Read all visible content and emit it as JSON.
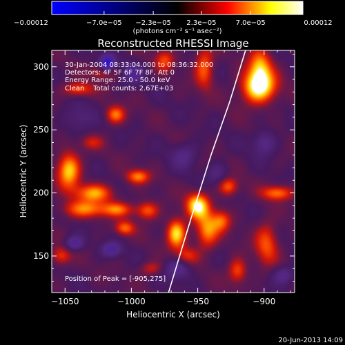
{
  "chart_data": {
    "type": "heatmap",
    "title": "Reconstructed RHESSI Image",
    "xlabel": "Heliocentric X (arcsec)",
    "ylabel": "Heliocentric Y (arcsec)",
    "xlim": [
      -1060,
      -877
    ],
    "ylim": [
      121,
      313
    ],
    "x_ticks": [
      -1050,
      -1000,
      -950,
      -900
    ],
    "x_tick_labels": [
      "−1050",
      "−1000",
      "−950",
      "−900"
    ],
    "y_ticks": [
      150,
      200,
      250,
      300
    ],
    "y_tick_labels": [
      "150",
      "200",
      "250",
      "300"
    ],
    "colorbar": {
      "label": "(photons cm⁻² s⁻¹ asec⁻²)",
      "min": -0.00012,
      "max": 0.00012,
      "ticks": [
        -0.00012,
        -7e-05,
        -2.3e-05,
        2.3e-05,
        7e-05,
        0.00012
      ],
      "tick_labels": [
        "−0.00012",
        "−7.0e−05",
        "−2.3e−05",
        "2.3e−05",
        "7.0e−05",
        "0.00012"
      ],
      "colormap": [
        "#0000ff",
        "#000000",
        "#ff0000",
        "#ffff00",
        "#ffffff"
      ]
    },
    "annotations": [
      "30-Jan-2004 08:33:04.000 to 08:36:32.000",
      "Detectors: 4F 5F 6F 7F 8F, Att 0",
      "Energy Range: 25.0 - 50.0 keV",
      "Clean    Total counts: 2.67E+03"
    ],
    "peak_label": "Position of Peak = [-905,275]",
    "peak": {
      "x": -905,
      "y": 275
    },
    "limb_curve": [
      [
        -972,
        121
      ],
      [
        -955,
        180
      ],
      [
        -940,
        230
      ],
      [
        -926,
        272
      ],
      [
        -914,
        313
      ]
    ],
    "grid": false,
    "blobs": [
      {
        "x": -904,
        "y": 284,
        "value": 1.0,
        "sx": 9,
        "sy": 9
      },
      {
        "x": -903,
        "y": 300,
        "value": 0.65,
        "sx": 6,
        "sy": 10
      },
      {
        "x": -945,
        "y": 300,
        "value": 0.55,
        "sx": 5,
        "sy": 12
      },
      {
        "x": -1012,
        "y": 262,
        "value": 0.6,
        "sx": 5,
        "sy": 5
      },
      {
        "x": -1047,
        "y": 218,
        "value": 0.8,
        "sx": 6,
        "sy": 10
      },
      {
        "x": -1028,
        "y": 200,
        "value": 0.65,
        "sx": 10,
        "sy": 5
      },
      {
        "x": -1035,
        "y": 187,
        "value": 0.6,
        "sx": 12,
        "sy": 5
      },
      {
        "x": -1010,
        "y": 187,
        "value": 0.5,
        "sx": 8,
        "sy": 4
      },
      {
        "x": -1005,
        "y": 172,
        "value": 0.55,
        "sx": 5,
        "sy": 4
      },
      {
        "x": -995,
        "y": 213,
        "value": 0.6,
        "sx": 6,
        "sy": 4
      },
      {
        "x": -988,
        "y": 186,
        "value": 0.55,
        "sx": 6,
        "sy": 5
      },
      {
        "x": -950,
        "y": 190,
        "value": 0.9,
        "sx": 6,
        "sy": 7
      },
      {
        "x": -943,
        "y": 170,
        "value": 0.65,
        "sx": 6,
        "sy": 10
      },
      {
        "x": -966,
        "y": 168,
        "value": 0.85,
        "sx": 5,
        "sy": 8
      },
      {
        "x": -927,
        "y": 205,
        "value": 0.55,
        "sx": 5,
        "sy": 5
      },
      {
        "x": -932,
        "y": 178,
        "value": 0.5,
        "sx": 5,
        "sy": 6
      },
      {
        "x": -890,
        "y": 200,
        "value": 0.6,
        "sx": 8,
        "sy": 4
      },
      {
        "x": -898,
        "y": 160,
        "value": 0.5,
        "sx": 6,
        "sy": 12
      },
      {
        "x": -920,
        "y": 138,
        "value": 0.5,
        "sx": 5,
        "sy": 7
      },
      {
        "x": -1040,
        "y": 282,
        "value": 0.5,
        "sx": 8,
        "sy": 4
      },
      {
        "x": -1020,
        "y": 296,
        "value": 0.45,
        "sx": 7,
        "sy": 4
      },
      {
        "x": -975,
        "y": 305,
        "value": 0.45,
        "sx": 5,
        "sy": 6
      },
      {
        "x": -1053,
        "y": 150,
        "value": 0.45,
        "sx": 5,
        "sy": 5
      },
      {
        "x": -958,
        "y": 150,
        "value": 0.4,
        "sx": 6,
        "sy": 5
      },
      {
        "x": -985,
        "y": 140,
        "value": 0.35,
        "sx": 6,
        "sy": 4
      },
      {
        "x": -1030,
        "y": 240,
        "value": 0.3,
        "sx": 6,
        "sy": 4
      },
      {
        "x": -1018,
        "y": 302,
        "value": -0.85,
        "sx": 4,
        "sy": 5
      },
      {
        "x": -1000,
        "y": 295,
        "value": -0.35,
        "sx": 6,
        "sy": 6
      },
      {
        "x": -1040,
        "y": 258,
        "value": -0.25,
        "sx": 8,
        "sy": 8
      },
      {
        "x": -1043,
        "y": 160,
        "value": -0.45,
        "sx": 5,
        "sy": 4
      },
      {
        "x": -1015,
        "y": 155,
        "value": -0.45,
        "sx": 5,
        "sy": 4
      },
      {
        "x": -935,
        "y": 215,
        "value": -0.25,
        "sx": 6,
        "sy": 6
      },
      {
        "x": -965,
        "y": 140,
        "value": -0.4,
        "sx": 7,
        "sy": 6
      },
      {
        "x": -885,
        "y": 135,
        "value": -0.35,
        "sx": 6,
        "sy": 5
      },
      {
        "x": -900,
        "y": 240,
        "value": -0.35,
        "sx": 6,
        "sy": 7
      },
      {
        "x": -960,
        "y": 230,
        "value": -0.3,
        "sx": 7,
        "sy": 7
      }
    ]
  },
  "footer_timestamp": "20-Jun-2013 14:09"
}
